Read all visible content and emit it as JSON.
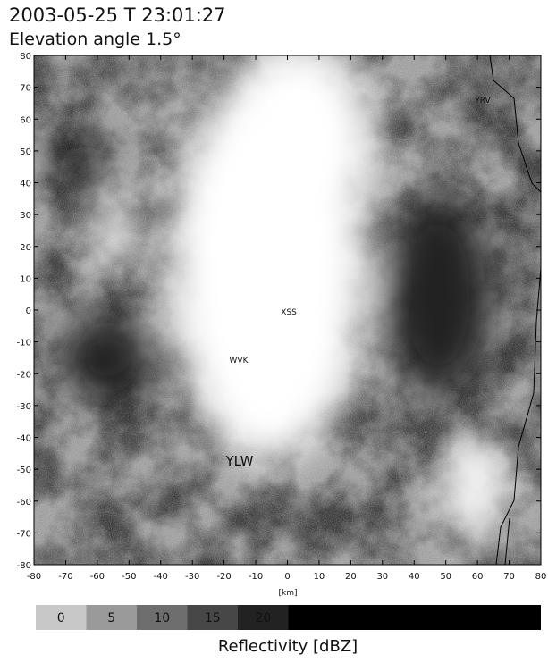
{
  "header": {
    "title": "2003-05-25 T 23:01:27",
    "subtitle": "Elevation angle  1.5°"
  },
  "plot": {
    "xlim": [
      -80,
      80
    ],
    "ylim": [
      -80,
      80
    ],
    "xticks": [
      -80,
      -70,
      -60,
      -50,
      -40,
      -30,
      -20,
      -10,
      0,
      10,
      20,
      30,
      40,
      50,
      60,
      70,
      80
    ],
    "yticks": [
      -80,
      -70,
      -60,
      -50,
      -40,
      -30,
      -20,
      -10,
      0,
      10,
      20,
      30,
      40,
      50,
      60,
      70,
      80
    ],
    "xlabel": "[km]",
    "stations": [
      "YRV",
      "XSS",
      "WVK",
      "YLW"
    ]
  },
  "colorbar": {
    "labels": [
      0,
      5,
      10,
      15,
      20
    ],
    "colors": [
      "#c8c8c8",
      "#9a9a9a",
      "#6e6e6e",
      "#474747",
      "#222222"
    ],
    "overflow_color": "#000000",
    "title": "Reflectivity [dBZ]"
  }
}
